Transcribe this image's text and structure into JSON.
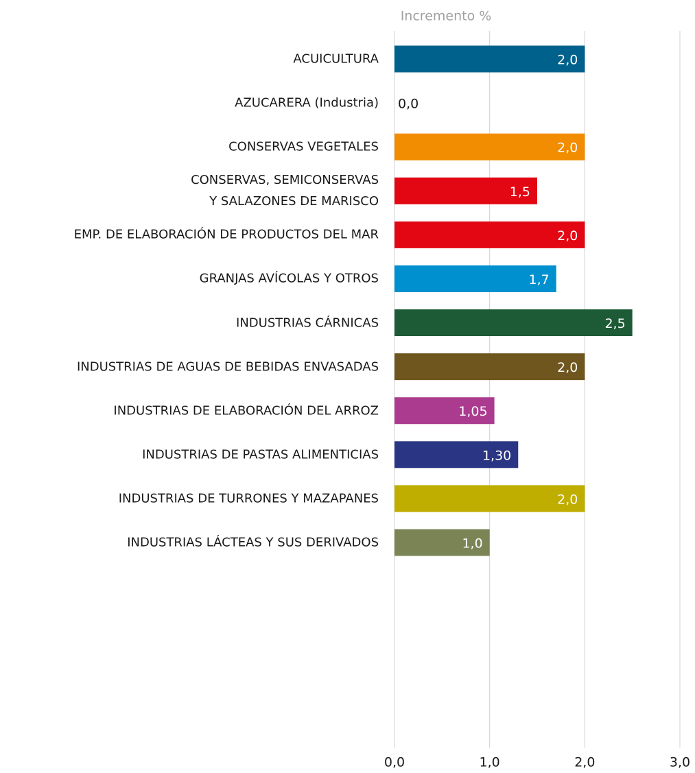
{
  "chart_data": {
    "type": "hbar",
    "axis_title": "Incremento %",
    "categories": [
      "ACUICULTURA",
      "AZUCARERA (Industria)",
      "CONSERVAS VEGETALES",
      "CONSERVAS, SEMICONSERVAS\nY SALAZONES DE MARISCO",
      "EMP. DE ELABORACIÓN DE PRODUCTOS DEL MAR",
      "GRANJAS AVÍCOLAS Y OTROS",
      "INDUSTRIAS CÁRNICAS",
      "INDUSTRIAS DE AGUAS DE BEBIDAS ENVASADAS",
      "INDUSTRIAS DE ELABORACIÓN DEL ARROZ",
      "INDUSTRIAS DE PASTAS ALIMENTICIAS",
      "INDUSTRIAS DE TURRONES Y MAZAPANES",
      "INDUSTRIAS LÁCTEAS Y SUS DERIVADOS"
    ],
    "values": [
      2.0,
      0.0,
      2.0,
      1.5,
      2.0,
      1.7,
      2.5,
      2.0,
      1.05,
      1.3,
      2.0,
      1.0
    ],
    "value_labels": [
      "2,0",
      "0,0",
      "2,0",
      "1,5",
      "2,0",
      "1,7",
      "2,5",
      "2,0",
      "1,05",
      "1,30",
      "2,0",
      "1,0"
    ],
    "colors": [
      "#00628c",
      "#9e9e9e",
      "#f28c00",
      "#e30613",
      "#e30613",
      "#0090d0",
      "#1d5a36",
      "#6f561f",
      "#ab3b8f",
      "#2a3583",
      "#bfad00",
      "#7a8455"
    ],
    "xlim": [
      0,
      3
    ],
    "xticks": [
      {
        "value": 0,
        "label": "0,0"
      },
      {
        "value": 1,
        "label": "1,0"
      },
      {
        "value": 2,
        "label": "2,0"
      },
      {
        "value": 3,
        "label": "3,0"
      }
    ],
    "grid": true
  }
}
